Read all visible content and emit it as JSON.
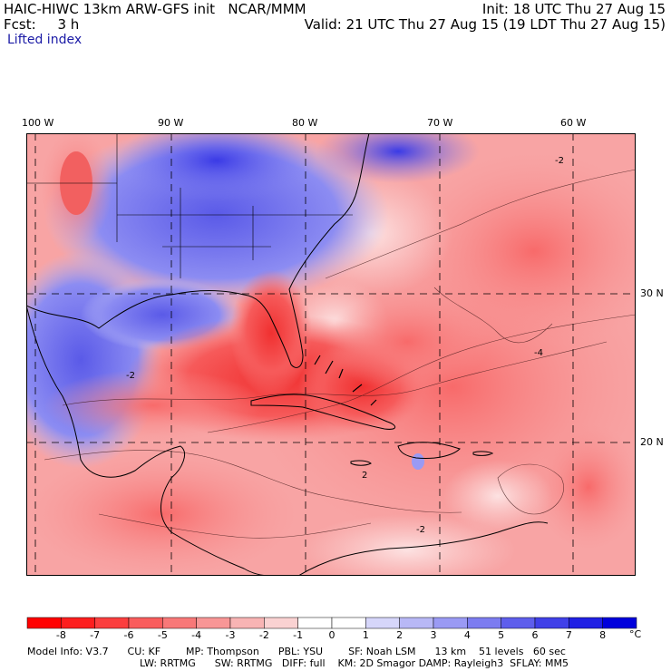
{
  "header": {
    "line1_left": "HAIC-HIWC 13km ARW-GFS init   NCAR/MMM",
    "line1_right": "Init: 18 UTC Thu 27 Aug 15",
    "line2_left": "Fcst:     3 h",
    "line2_right": "Valid: 21 UTC Thu 27 Aug 15 (19 LDT Thu 27 Aug 15)",
    "variable": "Lifted index"
  },
  "map": {
    "longitude_labels": [
      "100 W",
      "90 W",
      "80 W",
      "70 W",
      "60 W"
    ],
    "latitude_labels": [
      "30 N",
      "20 N"
    ],
    "contour_labels": [
      "-2",
      "-4",
      "-2",
      "2",
      "-2"
    ]
  },
  "colorbar": {
    "ticks": [
      "-8",
      "-7",
      "-6",
      "-5",
      "-4",
      "-3",
      "-2",
      "-1",
      "0",
      "1",
      "2",
      "3",
      "4",
      "5",
      "6",
      "7",
      "8"
    ],
    "unit": "°C",
    "colors": [
      "#ff0000",
      "#fd1e1e",
      "#fb3e3e",
      "#f95c5c",
      "#f87878",
      "#f89696",
      "#f8b4b4",
      "#fad2d2",
      "#ffffff",
      "#d6d6fa",
      "#b8b8f6",
      "#9a9af4",
      "#7c7cf0",
      "#5e5eec",
      "#4040e8",
      "#2020e4",
      "#0000dc"
    ]
  },
  "footer": {
    "line1": "Model Info: V3.7      CU: KF        MP: Thompson      PBL: YSU        SF: Noah LSM      13 km    51 levels   60 sec",
    "line2": "LW: RRTMG      SW: RRTMG   DIFF: full    KM: 2D Smagor DAMP: Rayleigh3  SFLAY: MM5"
  }
}
